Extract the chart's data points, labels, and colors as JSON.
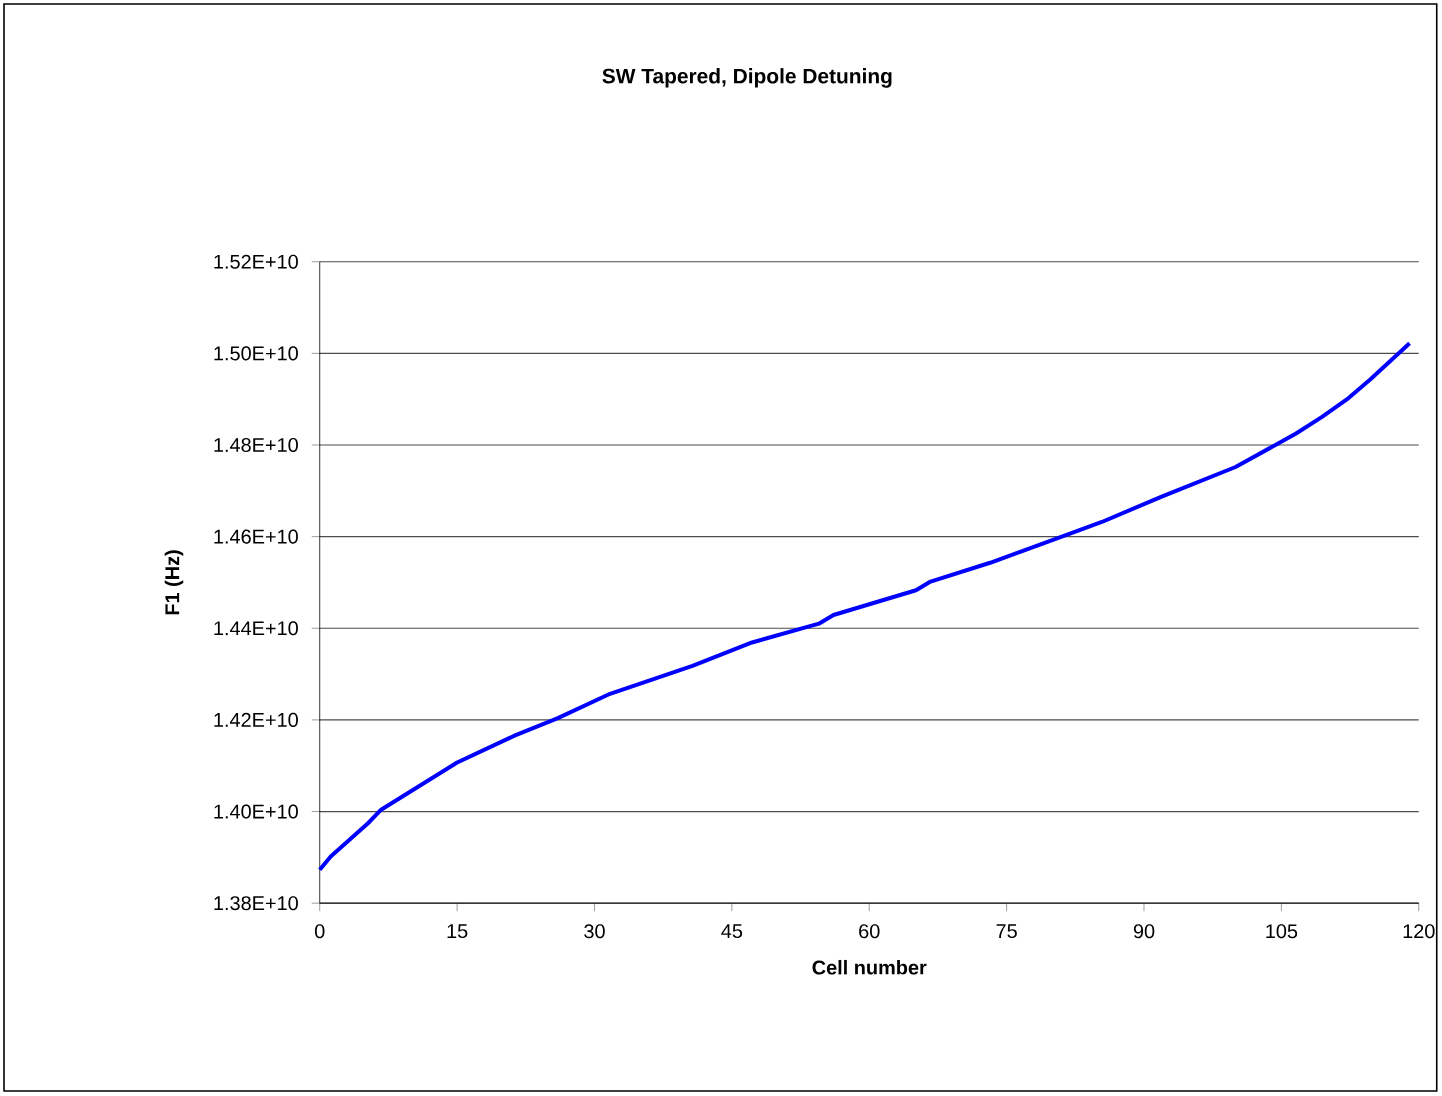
{
  "chart_data": {
    "type": "line",
    "title": "SW Tapered, Dipole Detuning",
    "xlabel": "Cell number",
    "ylabel": "F1 (Hz)",
    "series": [
      {
        "color": "#0000ff",
        "x": [
          0,
          1.2,
          5.3,
          6.7,
          15,
          21.2,
          26,
          31.7,
          40.7,
          47.2,
          54.5,
          56.1,
          65.1,
          66.7,
          73.2,
          81.4,
          85.4,
          92,
          100,
          106.6,
          109.4,
          112.3,
          114.7,
          119
        ],
        "values": [
          13873000000,
          13902000000,
          13975000000,
          14004000000,
          14107000000,
          14165000000,
          14204000000,
          14257000000,
          14318000000,
          14369000000,
          14410000000,
          14429000000,
          14483000000,
          14502000000,
          14543000000,
          14603000000,
          14632000000,
          14688000000,
          14752000000,
          14825000000,
          14861000000,
          14902000000,
          14943000000,
          15022000000
        ]
      }
    ],
    "xlim": [
      0,
      120
    ],
    "xticks": [
      0,
      15,
      30,
      45,
      60,
      75,
      90,
      105,
      120
    ],
    "ylim": [
      13800000000,
      15200000000
    ],
    "yticks": [
      {
        "value": 13800000000,
        "label": "1.38E+10"
      },
      {
        "value": 14000000000,
        "label": "1.40E+10"
      },
      {
        "value": 14200000000,
        "label": "1.42E+10"
      },
      {
        "value": 14400000000,
        "label": "1.44E+10"
      },
      {
        "value": 14600000000,
        "label": "1.46E+10"
      },
      {
        "value": 14800000000,
        "label": "1.48E+10"
      },
      {
        "value": 15000000000,
        "label": "1.50E+10"
      },
      {
        "value": 15200000000,
        "label": "1.52E+10"
      }
    ],
    "grid": "y",
    "marker": "none",
    "line_style": "solid"
  }
}
